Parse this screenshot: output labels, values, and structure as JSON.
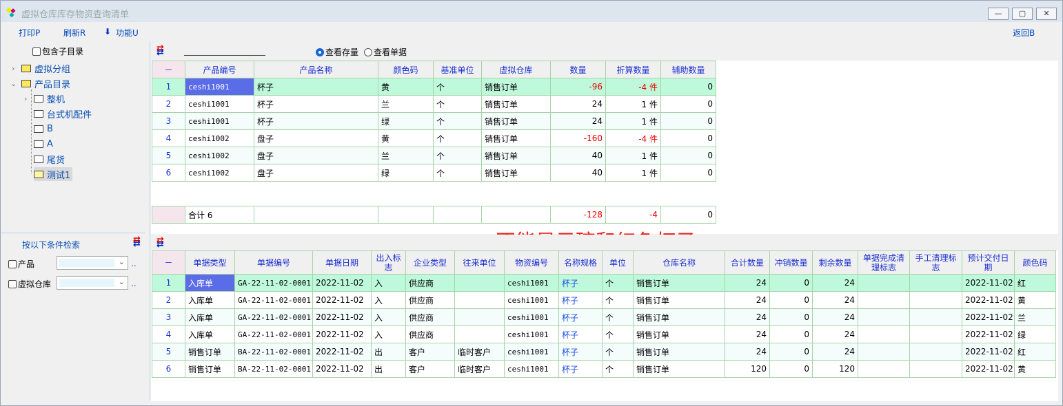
{
  "window": {
    "title": "虚拟仓库库存物资查询清单",
    "min": "—",
    "max": "▢",
    "close": "✕"
  },
  "toolbar": {
    "print": "打印P",
    "refresh": "刷新R",
    "func": "功能U",
    "back": "返回B"
  },
  "tree": {
    "include_sub": "包含子目录",
    "items": [
      "虚拟分组",
      "产品目录",
      "整机",
      "台式机配件",
      "B",
      "A",
      "尾货",
      "测试1"
    ]
  },
  "search": {
    "title": "按以下条件检索",
    "product": "产品",
    "warehouse": "虚拟仓库",
    "more": ".."
  },
  "top": {
    "radio_stock": "查看存量",
    "radio_doc": "查看单据",
    "headers": [
      "－",
      "产品编号",
      "产品名称",
      "颜色码",
      "基准单位",
      "虚拟仓库",
      "数量",
      "折算数量",
      "辅助数量"
    ],
    "rows": [
      [
        "1",
        "ceshi1001",
        "杯子",
        "黄",
        "个",
        "销售订单",
        "-96",
        "-4 件",
        "0"
      ],
      [
        "2",
        "ceshi1001",
        "杯子",
        "兰",
        "个",
        "销售订单",
        "24",
        "1 件",
        "0"
      ],
      [
        "3",
        "ceshi1001",
        "杯子",
        "绿",
        "个",
        "销售订单",
        "24",
        "1 件",
        "0"
      ],
      [
        "4",
        "ceshi1002",
        "盘子",
        "黄",
        "个",
        "销售订单",
        "-160",
        "-4 件",
        "0"
      ],
      [
        "5",
        "ceshi1002",
        "盘子",
        "兰",
        "个",
        "销售订单",
        "40",
        "1 件",
        "0"
      ],
      [
        "6",
        "ceshi1002",
        "盘子",
        "绿",
        "个",
        "销售订单",
        "40",
        "1 件",
        "0"
      ]
    ],
    "total": [
      "",
      "合计 6",
      "",
      "",
      "",
      "",
      "-128",
      "-4",
      "0"
    ],
    "note": "不能显示碗和红色杯子"
  },
  "bottom": {
    "headers": [
      "－",
      "单据类型",
      "单据编号",
      "单据日期",
      "出入标志",
      "企业类型",
      "往来单位",
      "物资编号",
      "名称规格",
      "单位",
      "仓库名称",
      "合计数量",
      "冲销数量",
      "剩余数量",
      "单据完成清理标志",
      "手工清理标志",
      "预计交付日期",
      "颜色码"
    ],
    "rows": [
      [
        "1",
        "入库单",
        "GA-22-11-02-0001",
        "2022-11-02",
        "入",
        "供应商",
        "",
        "ceshi1001",
        "杯子",
        "个",
        "销售订单",
        "24",
        "0",
        "24",
        "",
        "",
        "2022-11-02",
        "红"
      ],
      [
        "2",
        "入库单",
        "GA-22-11-02-0001",
        "2022-11-02",
        "入",
        "供应商",
        "",
        "ceshi1001",
        "杯子",
        "个",
        "销售订单",
        "24",
        "0",
        "24",
        "",
        "",
        "2022-11-02",
        "黄"
      ],
      [
        "3",
        "入库单",
        "GA-22-11-02-0001",
        "2022-11-02",
        "入",
        "供应商",
        "",
        "ceshi1001",
        "杯子",
        "个",
        "销售订单",
        "24",
        "0",
        "24",
        "",
        "",
        "2022-11-02",
        "兰"
      ],
      [
        "4",
        "入库单",
        "GA-22-11-02-0001",
        "2022-11-02",
        "入",
        "供应商",
        "",
        "ceshi1001",
        "杯子",
        "个",
        "销售订单",
        "24",
        "0",
        "24",
        "",
        "",
        "2022-11-02",
        "绿"
      ],
      [
        "5",
        "销售订单",
        "BA-22-11-02-0001",
        "2022-11-02",
        "出",
        "客户",
        "临时客户",
        "ceshi1001",
        "杯子",
        "个",
        "销售订单",
        "24",
        "0",
        "24",
        "",
        "",
        "2022-11-02",
        "红"
      ],
      [
        "6",
        "销售订单",
        "BA-22-11-02-0001",
        "2022-11-02",
        "出",
        "客户",
        "临时客户",
        "ceshi1001",
        "杯子",
        "个",
        "销售订单",
        "120",
        "0",
        "120",
        "",
        "",
        "2022-11-02",
        "黄"
      ]
    ]
  }
}
